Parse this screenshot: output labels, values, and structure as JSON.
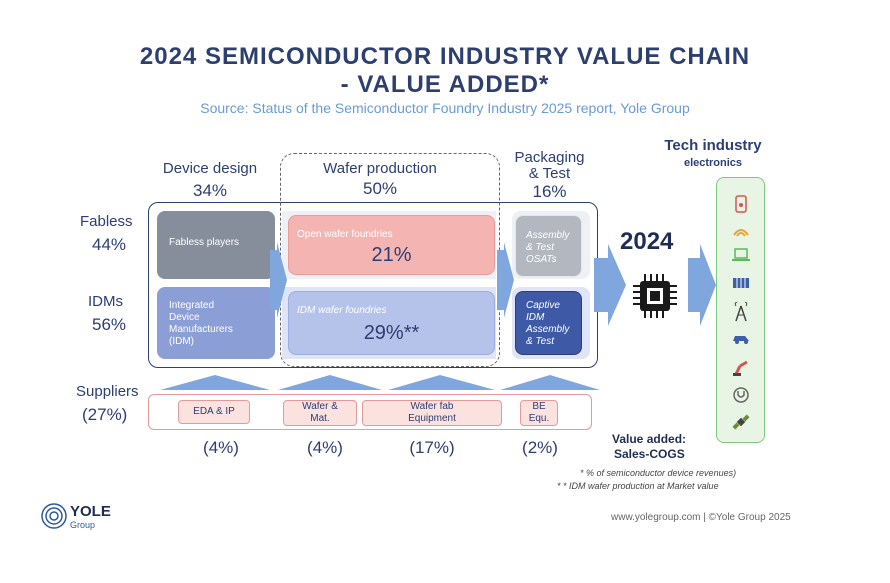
{
  "title_line1": "2024 SEMICONDUCTOR INDUSTRY VALUE CHAIN",
  "title_line2": "- VALUE ADDED*",
  "source": "Source: Status of the Semiconductor Foundry Industry 2025 report, Yole Group",
  "columns": {
    "device_design": {
      "label": "Device design",
      "pct": "34%"
    },
    "wafer_production": {
      "label": "Wafer production",
      "pct": "50%"
    },
    "packaging": {
      "label_line1": "Packaging",
      "label_line2": "& Test",
      "pct": "16%"
    },
    "tech_industry": {
      "label": "Tech industry",
      "sublabel": "electronics"
    }
  },
  "rows": {
    "fabless": {
      "label": "Fabless",
      "pct": "44%"
    },
    "idms": {
      "label": "IDMs",
      "pct": "56%"
    },
    "suppliers": {
      "label": "Suppliers",
      "pct": "(27%)"
    }
  },
  "boxes": {
    "fabless_players": "Fabless players",
    "idm_line1": "Integrated",
    "idm_line2": "Device",
    "idm_line3": "Manufacturers",
    "idm_line4": "(IDM)",
    "open_foundries": "Open wafer foundries",
    "open_foundries_pct": "21%",
    "idm_foundries": "IDM wafer foundries",
    "idm_foundries_pct": "29%**",
    "osat_line1": "Assembly",
    "osat_line2": "& Test",
    "osat_line3": "OSATs",
    "captive_line1": "Captive",
    "captive_line2": "IDM",
    "captive_line3": "Assembly",
    "captive_line4": "& Test"
  },
  "year": "2024",
  "suppliers": [
    {
      "line1": "EDA & IP",
      "line2": "",
      "pct": "(4%)"
    },
    {
      "line1": "Wafer &",
      "line2": "Mat.",
      "pct": "(4%)"
    },
    {
      "line1": "Wafer fab",
      "line2": "Equipment",
      "pct": "(17%)"
    },
    {
      "line1": "BE",
      "line2": "Equ.",
      "pct": "(2%)"
    }
  ],
  "value_added_line1": "Value added:",
  "value_added_line2": "Sales-COGS",
  "footnote1": "* % of semiconductor device revenues)",
  "footnote2": "* * IDM wafer production at Market value",
  "logo_text": "YOLE",
  "logo_sub": "Group",
  "footer": "www.yolegroup.com | ©Yole Group 2025",
  "icons": [
    "phone-icon",
    "router-icon",
    "laptop-icon",
    "server-icon",
    "antenna-icon",
    "car-icon",
    "robot-arm-icon",
    "stethoscope-icon",
    "satellite-icon"
  ],
  "colors": {
    "fabless_gray": "#868e9c",
    "idm_blue": "#8b9fd6",
    "open_foundry_pink": "#f4b4b1",
    "idm_foundry_blue": "#b5c2ea",
    "arrow_blue": "#7fa6dd",
    "tech_green": "#7fc97f"
  }
}
